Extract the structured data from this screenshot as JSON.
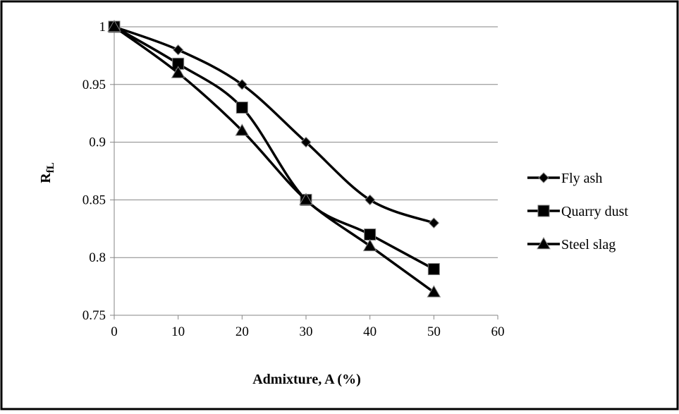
{
  "chart_data": {
    "type": "line",
    "x": [
      0,
      10,
      20,
      30,
      40,
      50
    ],
    "series": [
      {
        "name": "Fly ash",
        "marker": "diamond",
        "values": [
          1.0,
          0.98,
          0.95,
          0.9,
          0.85,
          0.83
        ]
      },
      {
        "name": "Quarry dust",
        "marker": "square",
        "values": [
          1.0,
          0.968,
          0.93,
          0.85,
          0.82,
          0.79
        ]
      },
      {
        "name": "Steel slag",
        "marker": "triangle",
        "values": [
          1.0,
          0.96,
          0.91,
          0.85,
          0.81,
          0.77
        ]
      }
    ],
    "xlabel": "Admixture, A (%)",
    "ylabel_main": "R",
    "ylabel_sub": "fL",
    "xlim": [
      0,
      60
    ],
    "ylim": [
      0.75,
      1.0
    ],
    "xticks": [
      0,
      10,
      20,
      30,
      40,
      50,
      60
    ],
    "yticks": [
      0.75,
      0.8,
      0.85,
      0.9,
      0.95,
      1.0
    ],
    "ytick_labels": [
      "0.75",
      "0.8",
      "0.85",
      "0.9",
      "0.95",
      "1"
    ],
    "grid": "horizontal",
    "legend": "right",
    "colors": {
      "line": "#000000",
      "grid": "#868686",
      "marker_stroke": "#808080"
    }
  }
}
